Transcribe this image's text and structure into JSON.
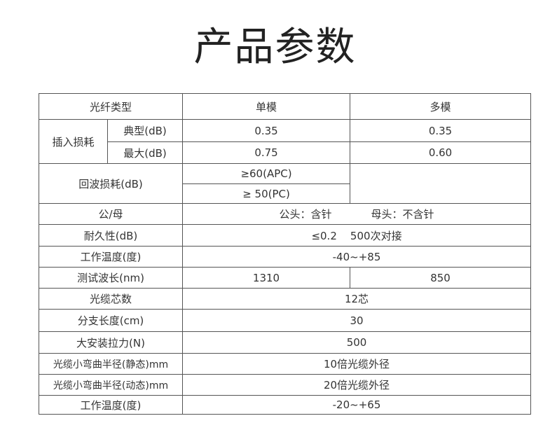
{
  "title": "产品参数",
  "header": {
    "label": "光纤类型",
    "single": "单模",
    "multi": "多模"
  },
  "insertion_loss": {
    "label": "插入损耗",
    "typical": {
      "label": "典型(dB)",
      "single": "0.35",
      "multi": "0.35"
    },
    "max": {
      "label": "最大(dB)",
      "single": "0.75",
      "multi": "0.60"
    }
  },
  "return_loss": {
    "label": "回波损耗(dB)",
    "apc": "≥60(APC)",
    "pc": "≥ 50(PC)"
  },
  "gender": {
    "label": "公/母",
    "male": "公头：含针",
    "female": "母头：不含针"
  },
  "durability": {
    "label": "耐久性(dB)",
    "value": "≤0.2    500次对接"
  },
  "temp1": {
    "label": "工作温度(度)",
    "value": "-40~+85"
  },
  "wavelength": {
    "label": "测试波长(nm)",
    "single": "1310",
    "multi": "850"
  },
  "cores": {
    "label": "光缆芯数",
    "value": "12芯"
  },
  "branch_length": {
    "label": "分支长度(cm)",
    "value": "30"
  },
  "tension": {
    "label": "大安装拉力(N)",
    "value": "500"
  },
  "bend_static": {
    "label": "光缆小弯曲半径(静态)mm",
    "value": "10倍光缆外径"
  },
  "bend_dynamic": {
    "label": "光缆小弯曲半径(动态)mm",
    "value": "20倍光缆外径"
  },
  "temp2": {
    "label": "工作温度(度)",
    "value": "-20~+65"
  }
}
